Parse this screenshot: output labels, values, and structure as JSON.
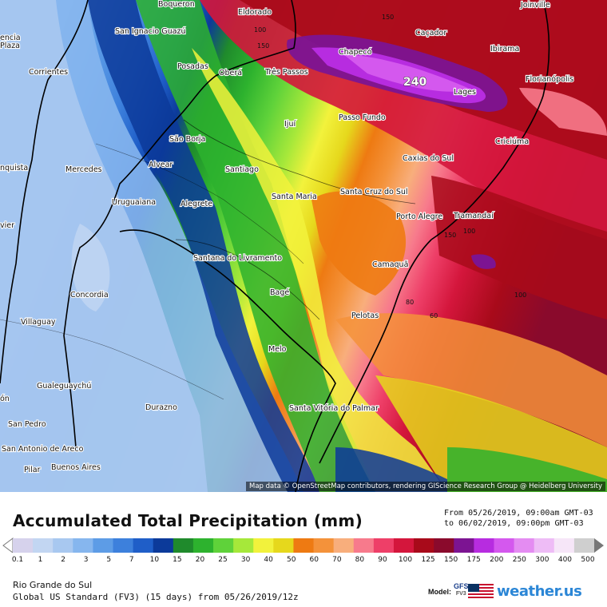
{
  "map": {
    "cities": [
      {
        "name": "Boqueron"
      },
      {
        "name": "Eldorado"
      },
      {
        "name": "Joinville"
      },
      {
        "name": "Plaza"
      },
      {
        "name": "San Ignacio Guazú"
      },
      {
        "name": "Caçador"
      },
      {
        "name": "Chapecó"
      },
      {
        "name": "Ibirama"
      },
      {
        "name": "Corrientes"
      },
      {
        "name": "Posadas"
      },
      {
        "name": "Oberá"
      },
      {
        "name": "Três Passos"
      },
      {
        "name": "Florianópolis"
      },
      {
        "name": "Lages"
      },
      {
        "name": "Ijuí"
      },
      {
        "name": "Passo Fundo"
      },
      {
        "name": "São Borja"
      },
      {
        "name": "Criciúma"
      },
      {
        "name": "Alvear"
      },
      {
        "name": "Caxias do Sul"
      },
      {
        "name": "Mercedes"
      },
      {
        "name": "Santiago"
      },
      {
        "name": "Santa Maria"
      },
      {
        "name": "Santa Cruz do Sul"
      },
      {
        "name": "Uruguaiana"
      },
      {
        "name": "Alegrete"
      },
      {
        "name": "Porto Alegre"
      },
      {
        "name": "Tramandaí"
      },
      {
        "name": "Santana do Livramento"
      },
      {
        "name": "Camaquã"
      },
      {
        "name": "Concordia"
      },
      {
        "name": "Bagé"
      },
      {
        "name": "Villaguay"
      },
      {
        "name": "Pelotas"
      },
      {
        "name": "Melo"
      },
      {
        "name": "Gualeguaychú"
      },
      {
        "name": "Durazno"
      },
      {
        "name": "Santa Vitória do Palmar"
      },
      {
        "name": "San Pedro"
      },
      {
        "name": "San Antonio de Areco"
      },
      {
        "name": "Pilar"
      },
      {
        "name": "Buenos Aires"
      },
      {
        "name": "nquista"
      },
      {
        "name": "vier"
      },
      {
        "name": "encia"
      },
      {
        "name": "ón"
      }
    ],
    "contour_labels": [
      "150",
      "150",
      "100",
      "100",
      "150",
      "100",
      "80",
      "60",
      "240"
    ],
    "attribution": "Map data © OpenStreetMap contributors, rendering GIScience Research Group @ Heidelberg University"
  },
  "footer": {
    "title": "Accumulated Total Precipitation (mm)",
    "period_from": "From 05/26/2019, 09:00am GMT-03",
    "period_to": "to 06/02/2019, 09:00pm GMT-03",
    "region": "Rio Grande do Sul",
    "run_info": "Global US Standard (FV3) (15 days) from 05/26/2019/12z",
    "model_label": "Model:",
    "model_name": "GFS",
    "model_version": "FV3",
    "brand": "weather.us"
  },
  "legend": {
    "ticks": [
      "0.1",
      "1",
      "2",
      "3",
      "5",
      "7",
      "10",
      "15",
      "20",
      "25",
      "30",
      "40",
      "50",
      "60",
      "70",
      "80",
      "90",
      "100",
      "125",
      "150",
      "175",
      "200",
      "250",
      "300",
      "400",
      "500"
    ],
    "colors": [
      "#d6d2ec",
      "#c2d6f2",
      "#a8c8f0",
      "#86b6ee",
      "#5d9ce6",
      "#3d80dc",
      "#1f5ec8",
      "#0c3a9a",
      "#1f8a2c",
      "#2db22e",
      "#5fd23a",
      "#a6e83a",
      "#f2f23c",
      "#e6d81c",
      "#ee7a12",
      "#f4923a",
      "#f8ae7c",
      "#f77a8c",
      "#ee3f68",
      "#d4163c",
      "#a80a1a",
      "#8a0a2c",
      "#7c1492",
      "#b72ce0",
      "#d458ee",
      "#e48cf2",
      "#eebcf6",
      "#f6e6f8",
      "#cfcfcf"
    ]
  }
}
